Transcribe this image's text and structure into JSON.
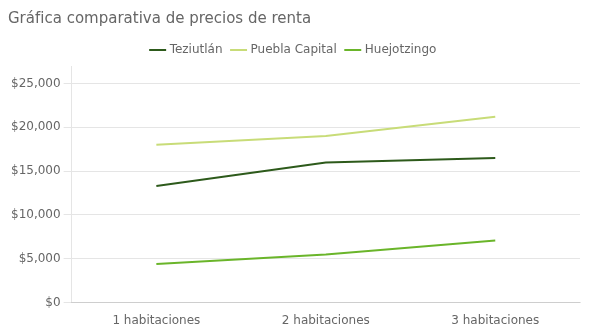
{
  "chart_data": {
    "type": "line",
    "title": "Gráfica comparativa de precios de renta",
    "categories": [
      "1 habitaciones",
      "2 habitaciones",
      "3 habitaciones"
    ],
    "series": [
      {
        "name": "Teziutlán",
        "color": "#2d5a1b",
        "values": [
          13300,
          16000,
          16500
        ]
      },
      {
        "name": "Puebla Capital",
        "color": "#c8dc78",
        "values": [
          18000,
          19000,
          21200
        ]
      },
      {
        "name": "Huejotzingo",
        "color": "#6ab52a",
        "values": [
          4400,
          5500,
          7100
        ]
      }
    ],
    "ylim": [
      0,
      27000
    ],
    "yticks": [
      {
        "value": 0,
        "label": "$0"
      },
      {
        "value": 5000,
        "label": "$5,000"
      },
      {
        "value": 10000,
        "label": "$10,000"
      },
      {
        "value": 15000,
        "label": "$15,000"
      },
      {
        "value": 20000,
        "label": "$20,000"
      },
      {
        "value": 25000,
        "label": "$25,000"
      }
    ],
    "grid": true,
    "legend": "top",
    "marker": "none"
  }
}
